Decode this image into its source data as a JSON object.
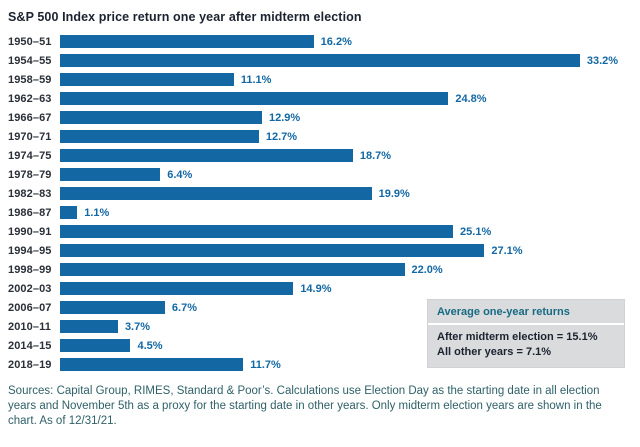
{
  "chart_data": {
    "type": "bar",
    "orientation": "horizontal",
    "title": "S&P 500 Index price return one year after midterm election",
    "categories": [
      "1950–51",
      "1954–55",
      "1958–59",
      "1962–63",
      "1966–67",
      "1970–71",
      "1974–75",
      "1978–79",
      "1982–83",
      "1986–87",
      "1990–91",
      "1994–95",
      "1998–99",
      "2002–03",
      "2006–07",
      "2010–11",
      "2014–15",
      "2018–19"
    ],
    "values": [
      16.2,
      33.2,
      11.1,
      24.8,
      12.9,
      12.7,
      18.7,
      6.4,
      19.9,
      1.1,
      25.1,
      27.1,
      22.0,
      14.9,
      6.7,
      3.7,
      4.5,
      11.7
    ],
    "value_suffix": "%",
    "xlim": [
      0,
      36.4
    ],
    "bar_color": "#1368a4",
    "value_label_color": "#1368a4",
    "legend_position": "none",
    "grid": false
  },
  "callout": {
    "title": "Average one-year returns",
    "line1": "After midterm election = 15.1%",
    "line2": "All other years = 7.1%"
  },
  "footer": {
    "text": "Sources: Capital Group, RIMES, Standard & Poor’s. Calculations use Election Day as the starting date in all election years and November 5th as a proxy for the starting date in other years. Only midterm election years are shown in the chart. As of 12/31/21."
  }
}
